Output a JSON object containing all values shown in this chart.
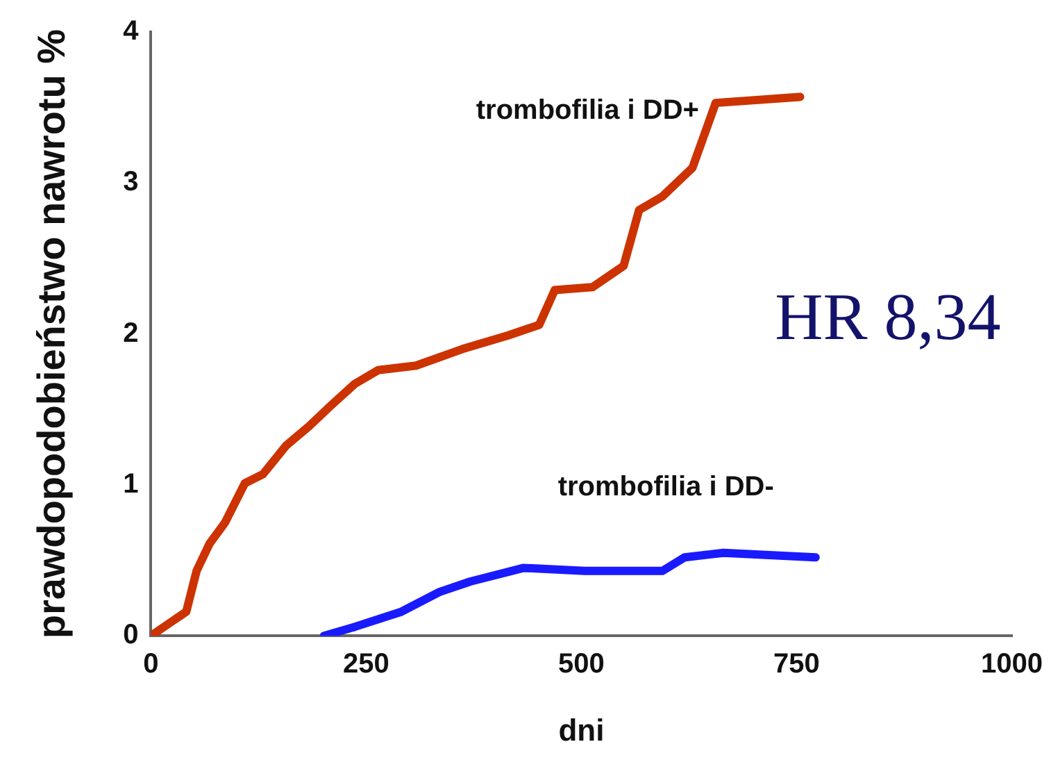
{
  "chart_data": {
    "type": "line",
    "xlabel": "dni",
    "ylabel": "prawdopodobieństwo nawrotu %",
    "xlim": [
      0,
      1000
    ],
    "xticks": [
      0,
      250,
      500,
      750,
      1000
    ],
    "ylim": [
      0,
      4
    ],
    "yticks": [
      0,
      1,
      2,
      3,
      4
    ],
    "grid": false,
    "legend": false,
    "marker": "none",
    "line_style": "solid",
    "annotations": [
      "HR 8,34"
    ],
    "series": [
      {
        "name": "trombofilia i DD+",
        "color": "#cc3300",
        "x": [
          0,
          23,
          41,
          53,
          68,
          86,
          109,
          130,
          157,
          184,
          210,
          237,
          264,
          308,
          362,
          415,
          451,
          469,
          513,
          549,
          567,
          594,
          629,
          656,
          754
        ],
        "values": [
          0,
          0.09,
          0.16,
          0.43,
          0.61,
          0.75,
          1.01,
          1.07,
          1.26,
          1.39,
          1.53,
          1.67,
          1.76,
          1.79,
          1.9,
          1.99,
          2.06,
          2.29,
          2.31,
          2.45,
          2.82,
          2.91,
          3.1,
          3.53,
          3.57
        ]
      },
      {
        "name": "trombofilia i DD-",
        "color": "#1a1aff",
        "x": [
          201,
          237,
          291,
          335,
          371,
          433,
          504,
          594,
          620,
          665,
          772
        ],
        "values": [
          0,
          0.06,
          0.16,
          0.29,
          0.36,
          0.45,
          0.43,
          0.43,
          0.52,
          0.55,
          0.52
        ]
      }
    ]
  }
}
